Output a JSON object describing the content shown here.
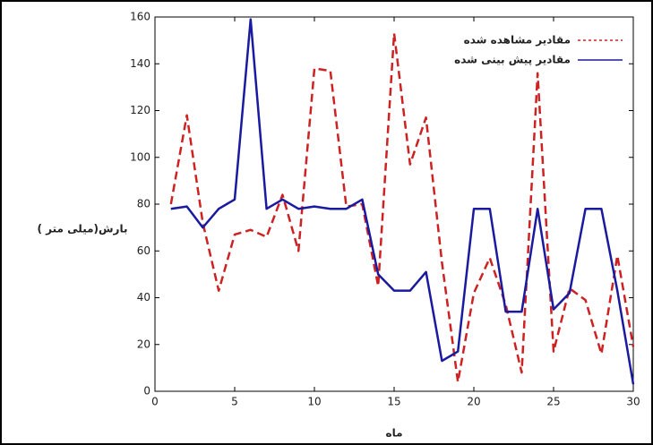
{
  "chart_data": {
    "type": "line",
    "x_label": "ماه",
    "y_label": "بارش(میلی متر )",
    "x": [
      1,
      2,
      3,
      4,
      5,
      6,
      7,
      8,
      9,
      10,
      11,
      12,
      13,
      14,
      15,
      16,
      17,
      18,
      19,
      20,
      21,
      22,
      23,
      24,
      25,
      26,
      27,
      28,
      29,
      30
    ],
    "series": [
      {
        "name": "مقادیر مشاهده شده",
        "color": "#cc2222",
        "dash": true,
        "values": [
          80,
          118,
          72,
          43,
          67,
          69,
          66,
          84,
          60,
          138,
          137,
          79,
          80,
          45,
          153,
          97,
          117,
          55,
          4,
          42,
          57,
          37,
          8,
          136,
          17,
          44,
          39,
          16,
          58,
          19
        ]
      },
      {
        "name": "مقادیر پیش بینی شده",
        "color": "#1a1aa0",
        "dash": false,
        "values": [
          78,
          79,
          70,
          78,
          82,
          159,
          78,
          82,
          78,
          79,
          78,
          78,
          82,
          50,
          43,
          43,
          51,
          13,
          17,
          78,
          78,
          34,
          34,
          78,
          35,
          42,
          78,
          78,
          43,
          3
        ]
      }
    ],
    "xlim": [
      0,
      30
    ],
    "xticks": [
      0,
      5,
      10,
      15,
      20,
      25,
      30
    ],
    "ylim": [
      0,
      160
    ],
    "yticks": [
      0,
      20,
      40,
      60,
      80,
      100,
      120,
      140,
      160
    ],
    "legend": "top-right"
  }
}
